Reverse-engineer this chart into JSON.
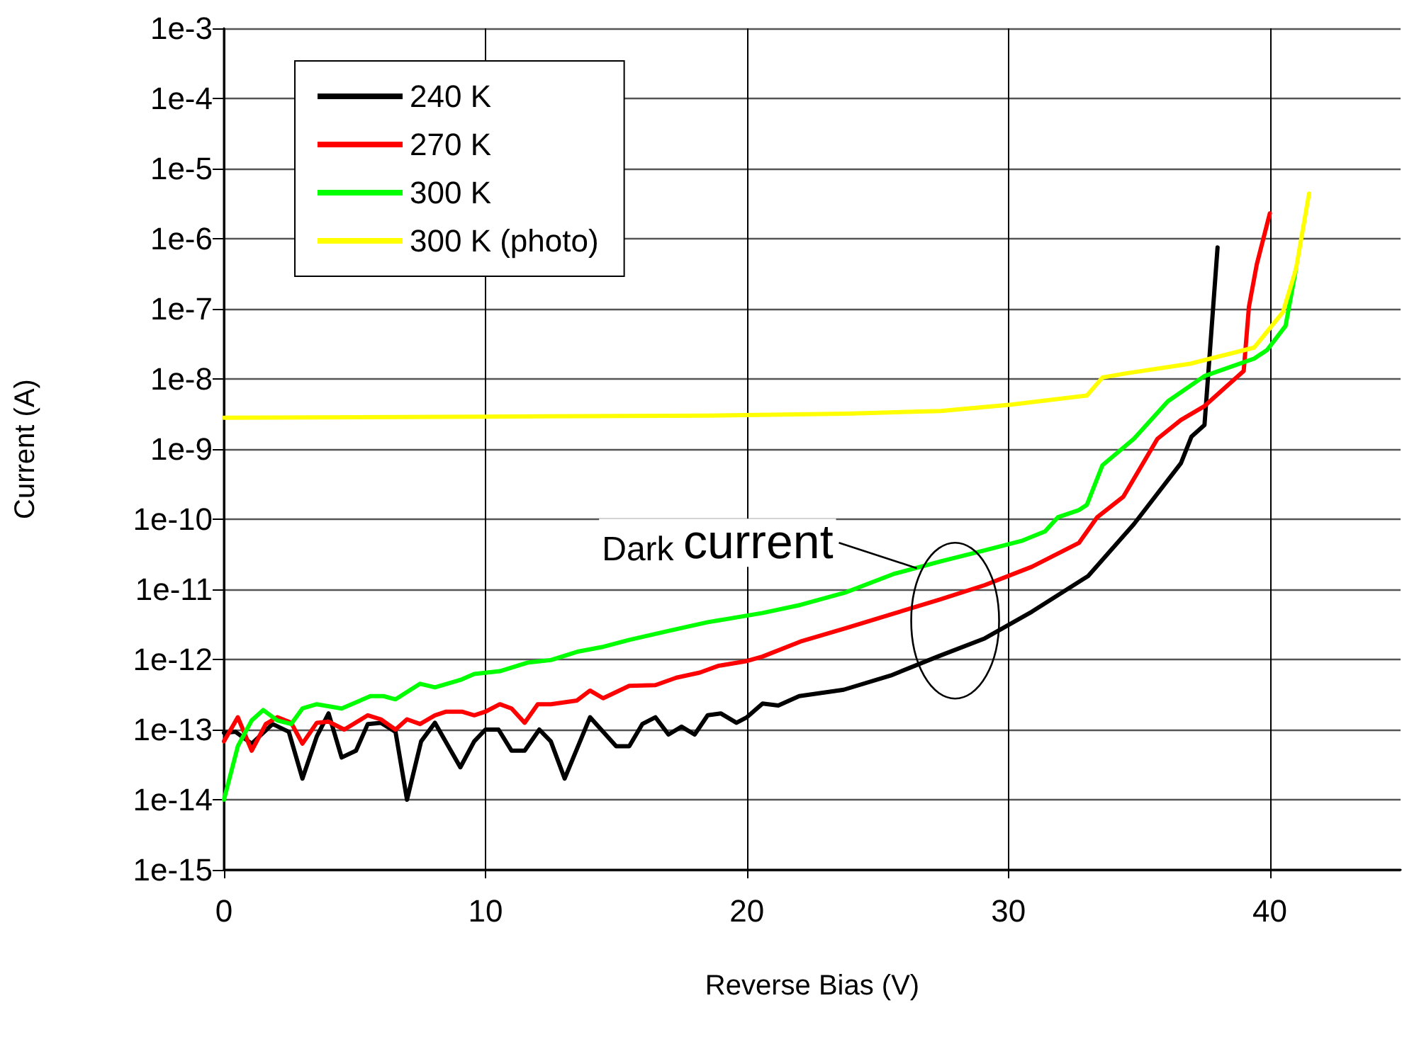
{
  "chart_data": {
    "type": "line",
    "xlabel": "Reverse Bias (V)",
    "ylabel": "Current (A)",
    "xlim": [
      0,
      45
    ],
    "xticks": [
      0,
      10,
      20,
      30,
      40
    ],
    "ylim": [
      1e-15,
      0.001
    ],
    "yticks": [
      {
        "value": 1e-15,
        "label": "1e-15"
      },
      {
        "value": 1e-14,
        "label": "1e-14"
      },
      {
        "value": 1e-13,
        "label": "1e-13"
      },
      {
        "value": 1e-12,
        "label": "1e-12"
      },
      {
        "value": 1e-11,
        "label": "1e-11"
      },
      {
        "value": 1e-10,
        "label": "1e-10"
      },
      {
        "value": 1e-09,
        "label": "1e-9"
      },
      {
        "value": 1e-08,
        "label": "1e-8"
      },
      {
        "value": 1e-07,
        "label": "1e-7"
      },
      {
        "value": 1e-06,
        "label": "1e-6"
      },
      {
        "value": 1e-05,
        "label": "1e-5"
      },
      {
        "value": 0.0001,
        "label": "1e-4"
      },
      {
        "value": 0.001,
        "label": "1e-3"
      }
    ],
    "log": "y",
    "grid": true,
    "legend": "top left",
    "marker": "none",
    "line_style": "solid",
    "annotations": [
      {
        "text": "Dark current",
        "x": 26.5,
        "y": 2e-11
      }
    ],
    "series": [
      {
        "name": "240 K",
        "color": "#000000",
        "x": [
          0,
          0.44,
          1.06,
          1.86,
          2.48,
          3.0,
          3.55,
          4.0,
          4.5,
          5.05,
          5.5,
          6.0,
          6.56,
          7.0,
          7.54,
          8.07,
          9.04,
          9.57,
          10.0,
          10.5,
          11.0,
          11.5,
          12.06,
          12.5,
          13.03,
          14.0,
          15.0,
          15.5,
          16.0,
          16.5,
          17.0,
          17.5,
          18.0,
          18.5,
          19.0,
          19.6,
          20.0,
          20.6,
          21.2,
          22.0,
          23.7,
          25.5,
          27.3,
          29.1,
          30.9,
          33.05,
          34.8,
          36.6,
          37.0,
          37.5,
          38.0
        ],
        "values": [
          9e-14,
          9.3e-14,
          6.3e-14,
          1.2e-13,
          9.3e-14,
          2e-14,
          8e-14,
          1.7e-13,
          4e-14,
          5e-14,
          1.2e-13,
          1.25e-13,
          9.3e-14,
          1e-14,
          6.8e-14,
          1.25e-13,
          2.9e-14,
          6.8e-14,
          1e-13,
          1e-13,
          5e-14,
          5e-14,
          1e-13,
          6.8e-14,
          2e-14,
          1.5e-13,
          5.8e-14,
          5.8e-14,
          1.2e-13,
          1.5e-13,
          8.5e-14,
          1.1e-13,
          8.5e-14,
          1.6e-13,
          1.7e-13,
          1.25e-13,
          1.5e-13,
          2.35e-13,
          2.2e-13,
          3e-13,
          3.7e-13,
          5.9e-13,
          1.1e-12,
          2e-12,
          4.8e-12,
          1.55e-11,
          8.5e-11,
          6.3e-10,
          1.5e-09,
          2.2e-09,
          7.5e-07
        ]
      },
      {
        "name": "270 K",
        "color": "#ff0000",
        "x": [
          0,
          0.53,
          1.06,
          1.6,
          2.04,
          2.57,
          3.0,
          3.55,
          4.0,
          4.6,
          5.5,
          6.0,
          6.56,
          7.0,
          7.5,
          8.07,
          8.5,
          9.1,
          9.57,
          10.0,
          10.55,
          11.0,
          11.5,
          12.0,
          12.5,
          13.5,
          14.0,
          14.5,
          15.5,
          16.5,
          17.3,
          18.2,
          18.9,
          20.0,
          20.6,
          22.05,
          23.8,
          25.6,
          27.4,
          29.1,
          30.9,
          32.7,
          33.4,
          34.4,
          35.7,
          36.6,
          37.5,
          39.0,
          39.2,
          39.5,
          40.0
        ],
        "values": [
          6.8e-14,
          1.5e-13,
          5e-14,
          1.2e-13,
          1.5e-13,
          1.25e-13,
          6.3e-14,
          1.25e-13,
          1.3e-13,
          1e-13,
          1.6e-13,
          1.4e-13,
          1e-13,
          1.4e-13,
          1.2e-13,
          1.6e-13,
          1.8e-13,
          1.8e-13,
          1.6e-13,
          1.8e-13,
          2.3e-13,
          2e-13,
          1.25e-13,
          2.3e-13,
          2.3e-13,
          2.6e-13,
          3.6e-13,
          2.8e-13,
          4.2e-13,
          4.3e-13,
          5.5e-13,
          6.5e-13,
          8.1e-13,
          9.5e-13,
          1.1e-12,
          1.8e-12,
          2.8e-12,
          4.5e-12,
          7.2e-12,
          1.15e-11,
          2.1e-11,
          4.6e-11,
          1.07e-10,
          2.1e-10,
          1.4e-09,
          2.6e-09,
          4.1e-09,
          1.3e-08,
          1.07e-07,
          4.3e-07,
          2.3e-06
        ]
      },
      {
        "name": "300 K",
        "color": "#00ff00",
        "x": [
          0,
          0.53,
          1.06,
          1.5,
          2.04,
          2.57,
          3.0,
          3.55,
          4.5,
          5.6,
          6.1,
          6.56,
          7.5,
          8.07,
          9.04,
          9.57,
          10.55,
          11.6,
          12.5,
          13.56,
          14.45,
          15.5,
          17.1,
          18.5,
          20.6,
          22.05,
          23.8,
          25.6,
          27.4,
          29.1,
          30.5,
          31.4,
          31.9,
          32.7,
          33.0,
          33.6,
          34.8,
          36.1,
          37.5,
          39.4,
          39.9,
          40.6,
          41.0
        ],
        "values": [
          1e-14,
          5.8e-14,
          1.35e-13,
          1.9e-13,
          1.35e-13,
          1.2e-13,
          2e-13,
          2.3e-13,
          2e-13,
          3e-13,
          3e-13,
          2.7e-13,
          4.5e-13,
          4e-13,
          5.1e-13,
          6.2e-13,
          6.8e-13,
          9e-13,
          9.8e-13,
          1.3e-12,
          1.5e-12,
          1.9e-12,
          2.6e-12,
          3.4e-12,
          4.6e-12,
          6e-12,
          9.1e-12,
          1.65e-11,
          2.5e-11,
          3.6e-11,
          4.9e-11,
          6.7e-11,
          1.07e-10,
          1.35e-10,
          1.6e-10,
          5.9e-10,
          1.4e-09,
          4.8e-09,
          1.1e-08,
          1.95e-08,
          2.6e-08,
          5.7e-08,
          3.7e-07
        ]
      },
      {
        "name": "300 K (photo)",
        "color": "#ffff00",
        "x": [
          0,
          10,
          18.5,
          23.8,
          27.4,
          30.1,
          33.0,
          33.6,
          34.5,
          36.95,
          39.4,
          40.5,
          41.0,
          41.5
        ],
        "values": [
          2.8e-09,
          2.9e-09,
          3e-09,
          3.2e-09,
          3.5e-09,
          4.3e-09,
          5.8e-09,
          1.05e-08,
          1.2e-08,
          1.65e-08,
          2.8e-08,
          9e-08,
          3.7e-07,
          4.4e-06
        ]
      }
    ]
  }
}
